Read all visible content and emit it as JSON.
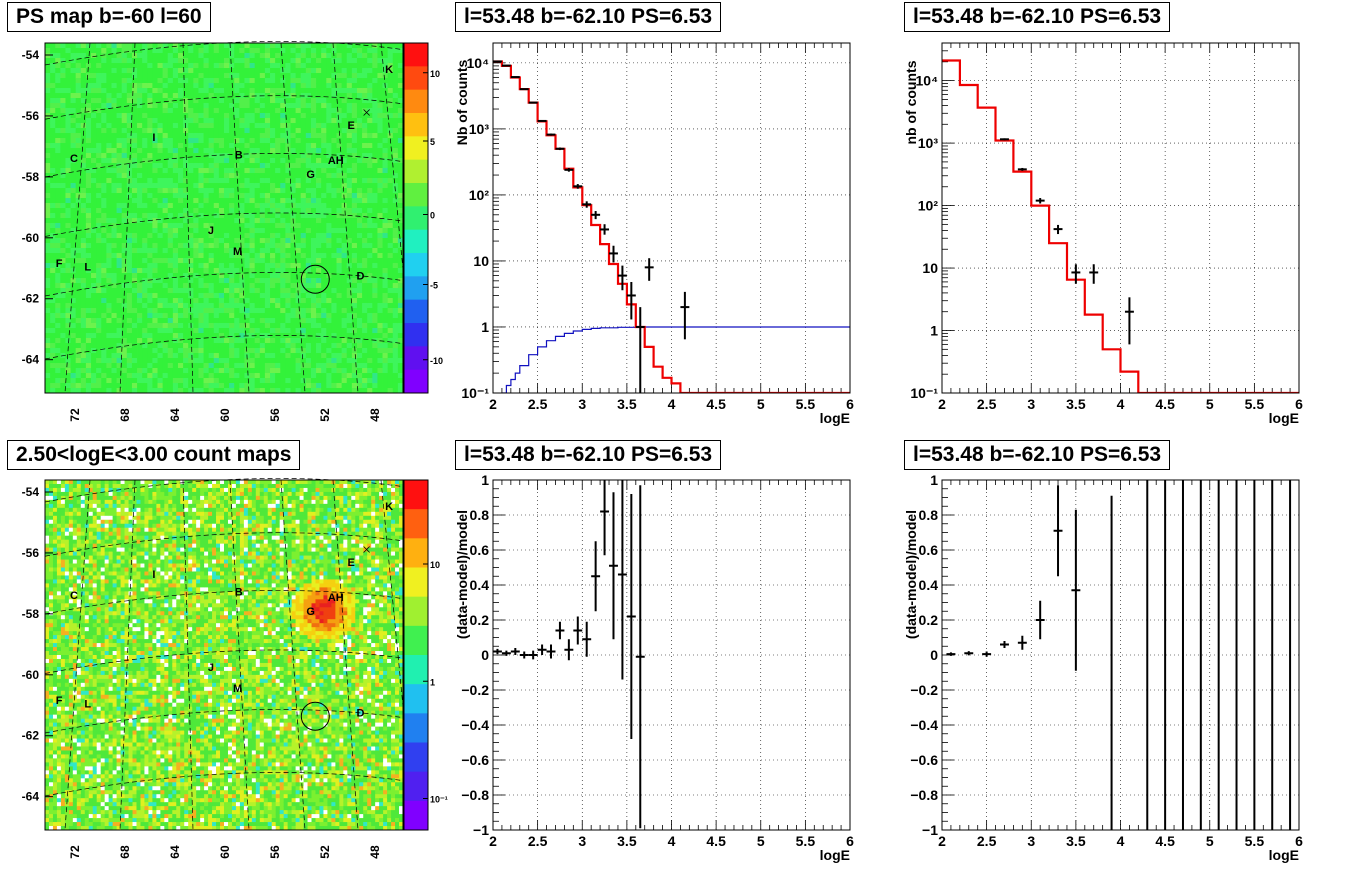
{
  "panels": {
    "map_top_title": "PS map b=-60 l=60",
    "map_bottom_title": "2.50<logE<3.00 count maps",
    "spec1_title": "l=53.48 b=-62.10 PS=6.53",
    "spec2_title": "l=53.48 b=-62.10 PS=6.53",
    "res1_title": "l=53.48 b=-62.10 PS=6.53",
    "res2_title": "l=53.48 b=-62.10 PS=6.53"
  },
  "maps": {
    "y_ticks": [
      "-54",
      "-56",
      "-58",
      "-60",
      "-62",
      "-64"
    ],
    "x_ticks": [
      "72",
      "68",
      "64",
      "60",
      "56",
      "52",
      "48"
    ],
    "sources": [
      {
        "label": "K",
        "fx": 0.95,
        "fy": 0.085
      },
      {
        "label": "E",
        "fx": 0.845,
        "fy": 0.245
      },
      {
        "label": "I",
        "fx": 0.3,
        "fy": 0.28
      },
      {
        "label": "C",
        "fx": 0.07,
        "fy": 0.34
      },
      {
        "label": "B",
        "fx": 0.53,
        "fy": 0.33
      },
      {
        "label": "AH",
        "fx": 0.79,
        "fy": 0.345
      },
      {
        "label": "G",
        "fx": 0.73,
        "fy": 0.385
      },
      {
        "label": "J",
        "fx": 0.455,
        "fy": 0.545
      },
      {
        "label": "M",
        "fx": 0.525,
        "fy": 0.605
      },
      {
        "label": "F",
        "fx": 0.03,
        "fy": 0.64
      },
      {
        "label": "L",
        "fx": 0.11,
        "fy": 0.65
      },
      {
        "label": "D",
        "fx": 0.87,
        "fy": 0.675
      }
    ],
    "top_colorbar_ticks": [
      "10",
      "5",
      "0",
      "-5",
      "-10"
    ],
    "bottom_colorbar_ticks": [
      "10",
      "1",
      "10⁻¹"
    ]
  },
  "chart_data": [
    {
      "type": "line",
      "title": "l=53.48 b=-62.10 PS=6.53",
      "xlabel": "logE",
      "ylabel": "Nb of counts",
      "log_y": true,
      "xlim": [
        2,
        6
      ],
      "ylim": [
        0.1,
        20000
      ],
      "grid": true,
      "x_tick_labels": [
        "2",
        "2.5",
        "3",
        "3.5",
        "4",
        "4.5",
        "5",
        "5.5",
        "6"
      ],
      "y_tick_labels": [
        "10⁻¹",
        "1",
        "10",
        "10²",
        "10³",
        "10⁴"
      ],
      "model_step_edges": [
        2.0,
        2.1,
        2.2,
        2.3,
        2.4,
        2.5,
        2.6,
        2.7,
        2.8,
        2.9,
        3.0,
        3.1,
        3.2,
        3.3,
        3.4,
        3.5,
        3.6,
        3.7,
        3.8,
        3.9,
        4.0,
        4.1,
        4.2,
        6.0
      ],
      "model_step_values": [
        10500,
        9000,
        6000,
        4000,
        2500,
        1300,
        800,
        500,
        250,
        130,
        70,
        35,
        18,
        9,
        4.5,
        2.2,
        1.0,
        0.5,
        0.25,
        0.17,
        0.14,
        0.1,
        0.1
      ],
      "acceptance_x": [
        2.1,
        2.15,
        2.2,
        2.25,
        2.3,
        2.4,
        2.5,
        2.6,
        2.7,
        2.8,
        2.9,
        3.0,
        3.1,
        3.2,
        3.4,
        3.6,
        6.0
      ],
      "acceptance_y": [
        0.1,
        0.13,
        0.16,
        0.2,
        0.26,
        0.38,
        0.5,
        0.62,
        0.72,
        0.8,
        0.87,
        0.92,
        0.95,
        0.97,
        0.99,
        1.0,
        1.0
      ],
      "data_points": [
        {
          "x": 2.05,
          "y": 10500,
          "err_lo": 10400,
          "err_hi": 10600
        },
        {
          "x": 2.15,
          "y": 9100,
          "err_lo": 9000,
          "err_hi": 9200
        },
        {
          "x": 2.25,
          "y": 6100,
          "err_lo": 6020,
          "err_hi": 6180
        },
        {
          "x": 2.35,
          "y": 4000,
          "err_lo": 3940,
          "err_hi": 4060
        },
        {
          "x": 2.45,
          "y": 2500,
          "err_lo": 2450,
          "err_hi": 2550
        },
        {
          "x": 2.55,
          "y": 1320,
          "err_lo": 1285,
          "err_hi": 1355
        },
        {
          "x": 2.65,
          "y": 820,
          "err_lo": 790,
          "err_hi": 850
        },
        {
          "x": 2.75,
          "y": 500,
          "err_lo": 478,
          "err_hi": 522
        },
        {
          "x": 2.85,
          "y": 240,
          "err_lo": 225,
          "err_hi": 255
        },
        {
          "x": 2.95,
          "y": 135,
          "err_lo": 124,
          "err_hi": 146
        },
        {
          "x": 3.05,
          "y": 72,
          "err_lo": 64,
          "err_hi": 80
        },
        {
          "x": 3.15,
          "y": 50,
          "err_lo": 43,
          "err_hi": 57
        },
        {
          "x": 3.25,
          "y": 30,
          "err_lo": 25,
          "err_hi": 36
        },
        {
          "x": 3.35,
          "y": 13,
          "err_lo": 9.5,
          "err_hi": 17
        },
        {
          "x": 3.45,
          "y": 6,
          "err_lo": 3.6,
          "err_hi": 8.5
        },
        {
          "x": 3.55,
          "y": 3,
          "err_lo": 1.3,
          "err_hi": 4.8
        },
        {
          "x": 3.65,
          "y": 1,
          "err_lo": 0.1,
          "err_hi": 2.0
        },
        {
          "x": 3.75,
          "y": 8,
          "err_lo": 5,
          "err_hi": 11
        },
        {
          "x": 4.15,
          "y": 2,
          "err_lo": 0.65,
          "err_hi": 3.4
        }
      ]
    },
    {
      "type": "line",
      "title": "l=53.48 b=-62.10 PS=6.53",
      "xlabel": "logE",
      "ylabel": "nb of counts",
      "log_y": true,
      "xlim": [
        2,
        6
      ],
      "ylim": [
        0.1,
        40000
      ],
      "grid": true,
      "x_tick_labels": [
        "2",
        "2.5",
        "3",
        "3.5",
        "4",
        "4.5",
        "5",
        "5.5",
        "6"
      ],
      "y_tick_labels": [
        "10⁻¹",
        "1",
        "10",
        "10²",
        "10³",
        "10⁴"
      ],
      "model_step_edges": [
        2.0,
        2.2,
        2.4,
        2.6,
        2.8,
        3.0,
        3.2,
        3.4,
        3.6,
        3.8,
        4.0,
        4.2,
        6.0
      ],
      "model_step_values": [
        21000,
        8500,
        3700,
        1100,
        350,
        100,
        25,
        6.5,
        1.8,
        0.5,
        0.22,
        0.1
      ],
      "data_points": [
        {
          "x": 2.7,
          "y": 1150,
          "err_lo": 1110,
          "err_hi": 1190
        },
        {
          "x": 2.9,
          "y": 380,
          "err_lo": 360,
          "err_hi": 400
        },
        {
          "x": 3.1,
          "y": 120,
          "err_lo": 108,
          "err_hi": 132
        },
        {
          "x": 3.3,
          "y": 42,
          "err_lo": 35,
          "err_hi": 49
        },
        {
          "x": 3.5,
          "y": 8.5,
          "err_lo": 5.6,
          "err_hi": 11.5
        },
        {
          "x": 3.7,
          "y": 8.5,
          "err_lo": 5.6,
          "err_hi": 11.5
        },
        {
          "x": 4.1,
          "y": 2,
          "err_lo": 0.6,
          "err_hi": 3.4
        }
      ]
    },
    {
      "type": "scatter",
      "title": "l=53.48 b=-62.10 PS=6.53",
      "xlabel": "logE",
      "ylabel": "(data-model)/model",
      "xlim": [
        2,
        6
      ],
      "ylim": [
        -1,
        1
      ],
      "grid": true,
      "x_tick_labels": [
        "2",
        "2.5",
        "3",
        "3.5",
        "4",
        "4.5",
        "5",
        "5.5",
        "6"
      ],
      "y_tick_labels": [
        "−1",
        "−0.8",
        "−0.6",
        "−0.4",
        "−0.2",
        "0",
        "0.2",
        "0.4",
        "0.6",
        "0.8",
        "1"
      ],
      "data_points": [
        {
          "x": 2.05,
          "y": 0.02,
          "err": 0.015
        },
        {
          "x": 2.15,
          "y": 0.01,
          "err": 0.015
        },
        {
          "x": 2.25,
          "y": 0.02,
          "err": 0.02
        },
        {
          "x": 2.35,
          "y": 0.0,
          "err": 0.02
        },
        {
          "x": 2.45,
          "y": 0.0,
          "err": 0.025
        },
        {
          "x": 2.55,
          "y": 0.03,
          "err": 0.03
        },
        {
          "x": 2.65,
          "y": 0.02,
          "err": 0.04
        },
        {
          "x": 2.75,
          "y": 0.14,
          "err": 0.05
        },
        {
          "x": 2.85,
          "y": 0.03,
          "err": 0.06
        },
        {
          "x": 2.95,
          "y": 0.14,
          "err": 0.08
        },
        {
          "x": 3.05,
          "y": 0.09,
          "err": 0.1
        },
        {
          "x": 3.15,
          "y": 0.45,
          "err": 0.2
        },
        {
          "x": 3.25,
          "y": 0.82,
          "err": 0.25
        },
        {
          "x": 3.35,
          "y": 0.51,
          "err": 0.42
        },
        {
          "x": 3.45,
          "y": 0.46,
          "err": 0.6
        },
        {
          "x": 3.55,
          "y": 0.22,
          "err": 0.7
        },
        {
          "x": 3.65,
          "y": -0.01,
          "err": 0.98
        }
      ]
    },
    {
      "type": "scatter",
      "title": "l=53.48 b=-62.10 PS=6.53",
      "xlabel": "logE",
      "ylabel": "(data-model)/model",
      "xlim": [
        2,
        6
      ],
      "ylim": [
        -1,
        1
      ],
      "grid": true,
      "x_tick_labels": [
        "2",
        "2.5",
        "3",
        "3.5",
        "4",
        "4.5",
        "5",
        "5.5",
        "6"
      ],
      "y_tick_labels": [
        "−1",
        "−0.8",
        "−0.6",
        "−0.4",
        "−0.2",
        "0",
        "0.2",
        "0.4",
        "0.6",
        "0.8",
        "1"
      ],
      "data_points": [
        {
          "x": 2.1,
          "y": 0.005,
          "err": 0.01
        },
        {
          "x": 2.3,
          "y": 0.01,
          "err": 0.012
        },
        {
          "x": 2.5,
          "y": 0.005,
          "err": 0.015
        },
        {
          "x": 2.7,
          "y": 0.06,
          "err": 0.02
        },
        {
          "x": 2.9,
          "y": 0.07,
          "err": 0.04
        },
        {
          "x": 3.1,
          "y": 0.2,
          "err": 0.11
        },
        {
          "x": 3.3,
          "y": 0.71,
          "err": 0.26
        },
        {
          "x": 3.5,
          "y": 0.37,
          "err": 0.46
        }
      ],
      "vertical_lines_x": [
        3.9,
        4.3,
        4.5,
        4.7,
        4.9,
        5.1,
        5.3,
        5.5,
        5.7,
        5.9
      ]
    }
  ]
}
